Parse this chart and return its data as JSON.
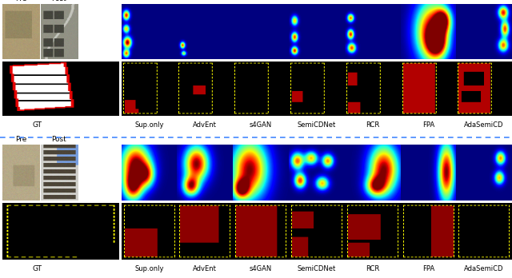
{
  "fig_width": 6.4,
  "fig_height": 3.48,
  "dpi": 100,
  "background_color": "#ffffff",
  "label_fontsize": 6.5,
  "sep_color": "#4488ff",
  "method_labels": [
    "Sup.only",
    "AdvEnt",
    "s4GAN",
    "SemiCDNet",
    "RCR",
    "FPA",
    "AdaSemiCD"
  ]
}
